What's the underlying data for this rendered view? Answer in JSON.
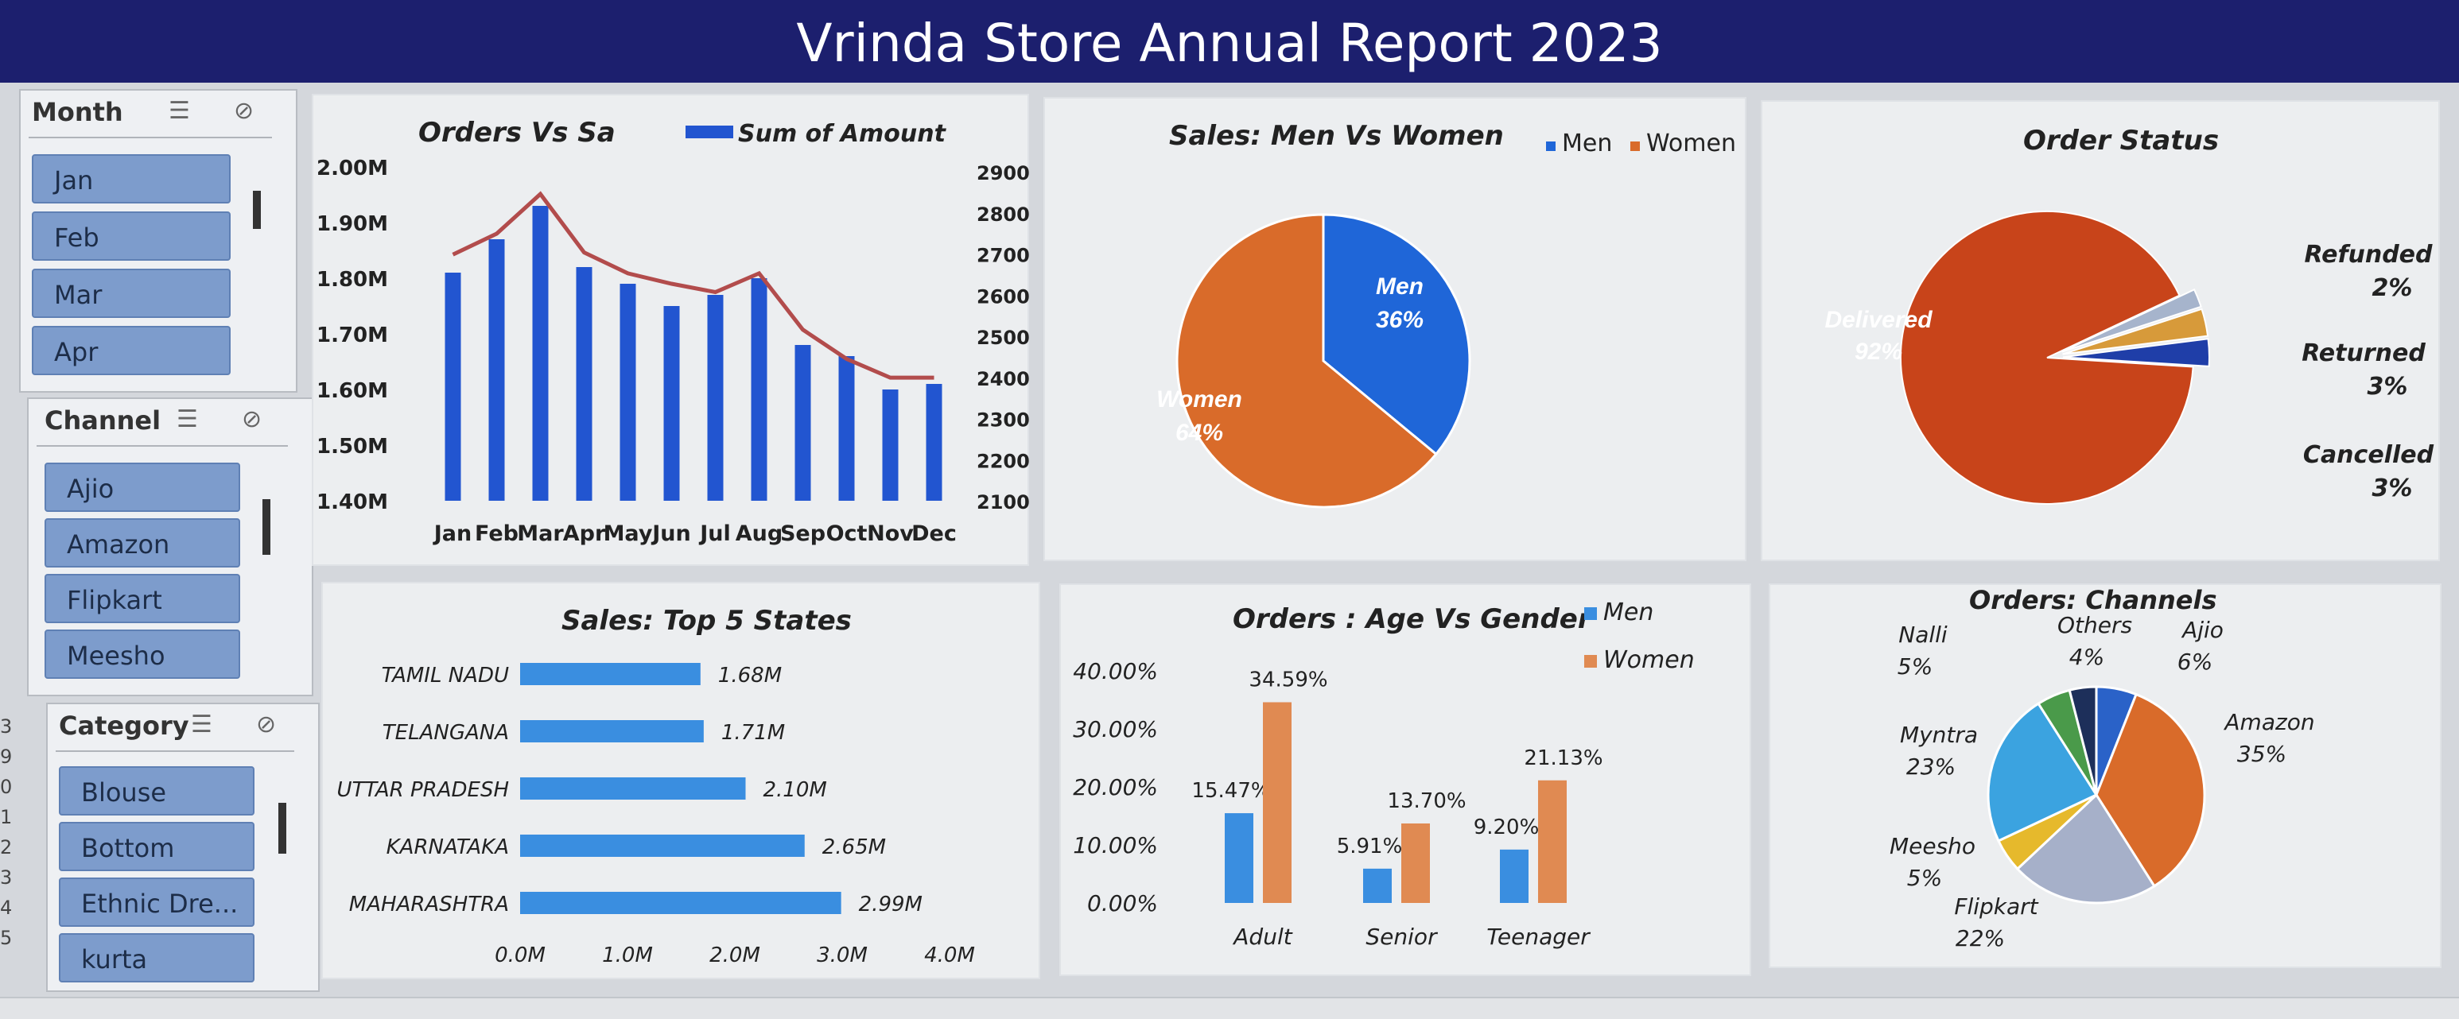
{
  "report_title": "Vrinda Store Annual Report 2023",
  "slicers": {
    "month": {
      "title": "Month",
      "items": [
        "Jan",
        "Feb",
        "Mar",
        "Apr"
      ]
    },
    "channel": {
      "title": "Channel",
      "items": [
        "Ajio",
        "Amazon",
        "Flipkart",
        "Meesho"
      ]
    },
    "category": {
      "title": "Category",
      "items": [
        "Blouse",
        "Bottom",
        "Ethnic Dre...",
        "kurta"
      ]
    }
  },
  "row_numbers": [
    "3",
    "9",
    "0",
    "1",
    "2",
    "3",
    "4",
    "5"
  ],
  "colors": {
    "title_bg": "#1c1f6e",
    "bar_blue": "#2255d0",
    "line_red": "#b24c4c",
    "men_blue": "#1f66d8",
    "women_orange": "#d96b2a",
    "delivered": "#c8441a",
    "light_blue": "#3a8ee0"
  },
  "chart_data": [
    {
      "type": "bar",
      "title": "Orders Vs Sa",
      "legend": "Sum of Amount",
      "legend_position": "top",
      "categories": [
        "Jan",
        "Feb",
        "Mar",
        "Apr",
        "May",
        "Jun",
        "Jul",
        "Aug",
        "Sep",
        "Oct",
        "Nov",
        "Dec"
      ],
      "series": [
        {
          "name": "Sum of Amount",
          "type": "bar",
          "axis": "left",
          "values": [
            1.81,
            1.87,
            1.93,
            1.82,
            1.79,
            1.75,
            1.77,
            1.8,
            1.68,
            1.66,
            1.6,
            1.61
          ]
        },
        {
          "type": "line",
          "axis": "right",
          "values": [
            2690,
            2740,
            2835,
            2695,
            2645,
            2620,
            2600,
            2645,
            2510,
            2440,
            2395,
            2395
          ]
        }
      ],
      "y_left": {
        "ticks": [
          "2.00M",
          "1.90M",
          "1.80M",
          "1.70M",
          "1.60M",
          "1.50M",
          "1.40M"
        ],
        "ylim": [
          1.4,
          2.0
        ]
      },
      "y_right": {
        "ticks": [
          "2900",
          "2800",
          "2700",
          "2600",
          "2500",
          "2400",
          "2300",
          "2200",
          "2100"
        ],
        "ylim": [
          2100,
          2900
        ]
      }
    },
    {
      "type": "pie",
      "title": "Sales: Men Vs Women",
      "legend": [
        "Men",
        "Women"
      ],
      "legend_position": "top-right",
      "slices": [
        {
          "label": "Men",
          "value": 36,
          "display": "36%"
        },
        {
          "label": "Women",
          "value": 64,
          "display": "64%"
        }
      ]
    },
    {
      "type": "pie",
      "title": "Order Status",
      "slices": [
        {
          "label": "Delivered",
          "value": 92,
          "display": "92%"
        },
        {
          "label": "Refunded",
          "value": 2,
          "display": "2%"
        },
        {
          "label": "Returned",
          "value": 3,
          "display": "3%"
        },
        {
          "label": "Cancelled",
          "value": 3,
          "display": "3%"
        }
      ]
    },
    {
      "type": "bar",
      "orientation": "horizontal",
      "title": "Sales: Top 5 States",
      "categories": [
        "TAMIL NADU",
        "TELANGANA",
        "UTTAR PRADESH",
        "KARNATAKA",
        "MAHARASHTRA"
      ],
      "values": [
        1.68,
        1.71,
        2.1,
        2.65,
        2.99
      ],
      "data_labels": [
        "1.68M",
        "1.71M",
        "2.10M",
        "2.65M",
        "2.99M"
      ],
      "x_ticks": [
        "0.0M",
        "1.0M",
        "2.0M",
        "3.0M",
        "4.0M"
      ],
      "xlim": [
        0,
        4
      ]
    },
    {
      "type": "bar",
      "title": "Orders : Age Vs Gender",
      "categories": [
        "Adult",
        "Senior",
        "Teenager"
      ],
      "series": [
        {
          "name": "Men",
          "values": [
            15.47,
            5.91,
            9.2
          ],
          "labels": [
            "15.47%",
            "5.91%",
            "9.20%"
          ]
        },
        {
          "name": "Women",
          "values": [
            34.59,
            13.7,
            21.13
          ],
          "labels": [
            "34.59%",
            "13.70%",
            "21.13%"
          ]
        }
      ],
      "y_ticks": [
        "40.00%",
        "30.00%",
        "20.00%",
        "10.00%",
        "0.00%"
      ],
      "ylim": [
        0,
        40
      ],
      "legend_position": "top-right"
    },
    {
      "type": "pie",
      "title": "Orders: Channels",
      "slices": [
        {
          "label": "Ajio",
          "value": 6,
          "display": "6%"
        },
        {
          "label": "Amazon",
          "value": 35,
          "display": "35%"
        },
        {
          "label": "Flipkart",
          "value": 22,
          "display": "22%"
        },
        {
          "label": "Meesho",
          "value": 5,
          "display": "5%"
        },
        {
          "label": "Myntra",
          "value": 23,
          "display": "23%"
        },
        {
          "label": "Nalli",
          "value": 5,
          "display": "5%"
        },
        {
          "label": "Others",
          "value": 4,
          "display": "4%"
        }
      ]
    }
  ]
}
